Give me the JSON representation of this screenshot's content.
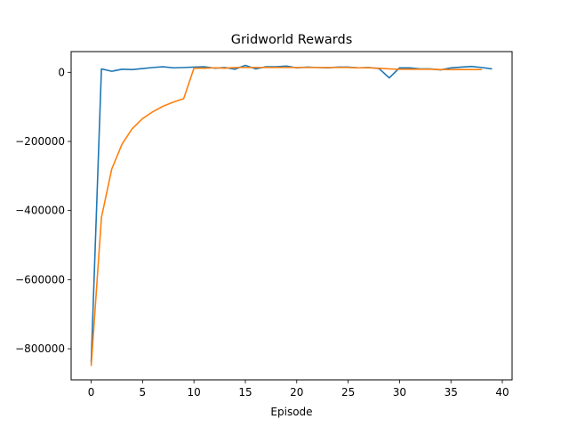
{
  "chart_data": {
    "type": "line",
    "title": "Gridworld Rewards",
    "xlabel": "Episode",
    "ylabel": "",
    "xlim": [
      -1.95,
      40.95
    ],
    "ylim": [
      -890000,
      60000
    ],
    "xticks": [
      0,
      5,
      10,
      15,
      20,
      25,
      30,
      35,
      40
    ],
    "yticks": [
      0,
      -200000,
      -400000,
      -600000,
      -800000
    ],
    "ytick_labels": [
      "0",
      "−200000",
      "−400000",
      "−600000",
      "−800000"
    ],
    "grid": false,
    "series": [
      {
        "color": "#1f77b4",
        "x": [
          0,
          1,
          2,
          3,
          4,
          5,
          6,
          7,
          8,
          9,
          10,
          11,
          12,
          13,
          14,
          15,
          16,
          17,
          18,
          19,
          20,
          21,
          22,
          23,
          24,
          25,
          26,
          27,
          28,
          29,
          30,
          31,
          32,
          33,
          34,
          35,
          36,
          37,
          38,
          39
        ],
        "values": [
          -840000,
          10000,
          3000,
          9000,
          8000,
          11000,
          14000,
          16000,
          13000,
          14000,
          15000,
          16000,
          12000,
          14000,
          9000,
          20000,
          10000,
          16000,
          16000,
          18000,
          13000,
          15000,
          14000,
          13000,
          15000,
          15000,
          13000,
          14000,
          11000,
          -16000,
          13000,
          13000,
          10000,
          10000,
          7000,
          13000,
          15000,
          17000,
          14000,
          10000
        ]
      },
      {
        "color": "#ff7f0e",
        "x": [
          0,
          1,
          2,
          3,
          4,
          5,
          6,
          7,
          8,
          9,
          10,
          11,
          12,
          13,
          14,
          15,
          16,
          17,
          18,
          19,
          20,
          21,
          22,
          23,
          24,
          25,
          26,
          27,
          28,
          29,
          30,
          31,
          32,
          33,
          34,
          35,
          36,
          37,
          38
        ],
        "values": [
          -850000,
          -420000,
          -280000,
          -208000,
          -163000,
          -134000,
          -114000,
          -98000,
          -86000,
          -76000,
          12000,
          12000,
          13000,
          12000,
          14000,
          14000,
          14000,
          14000,
          14000,
          14000,
          14000,
          14000,
          14000,
          14000,
          14000,
          14000,
          13000,
          13000,
          12000,
          10000,
          9000,
          9000,
          9000,
          9000,
          8000,
          8000,
          8000,
          8000,
          8000
        ]
      }
    ]
  }
}
